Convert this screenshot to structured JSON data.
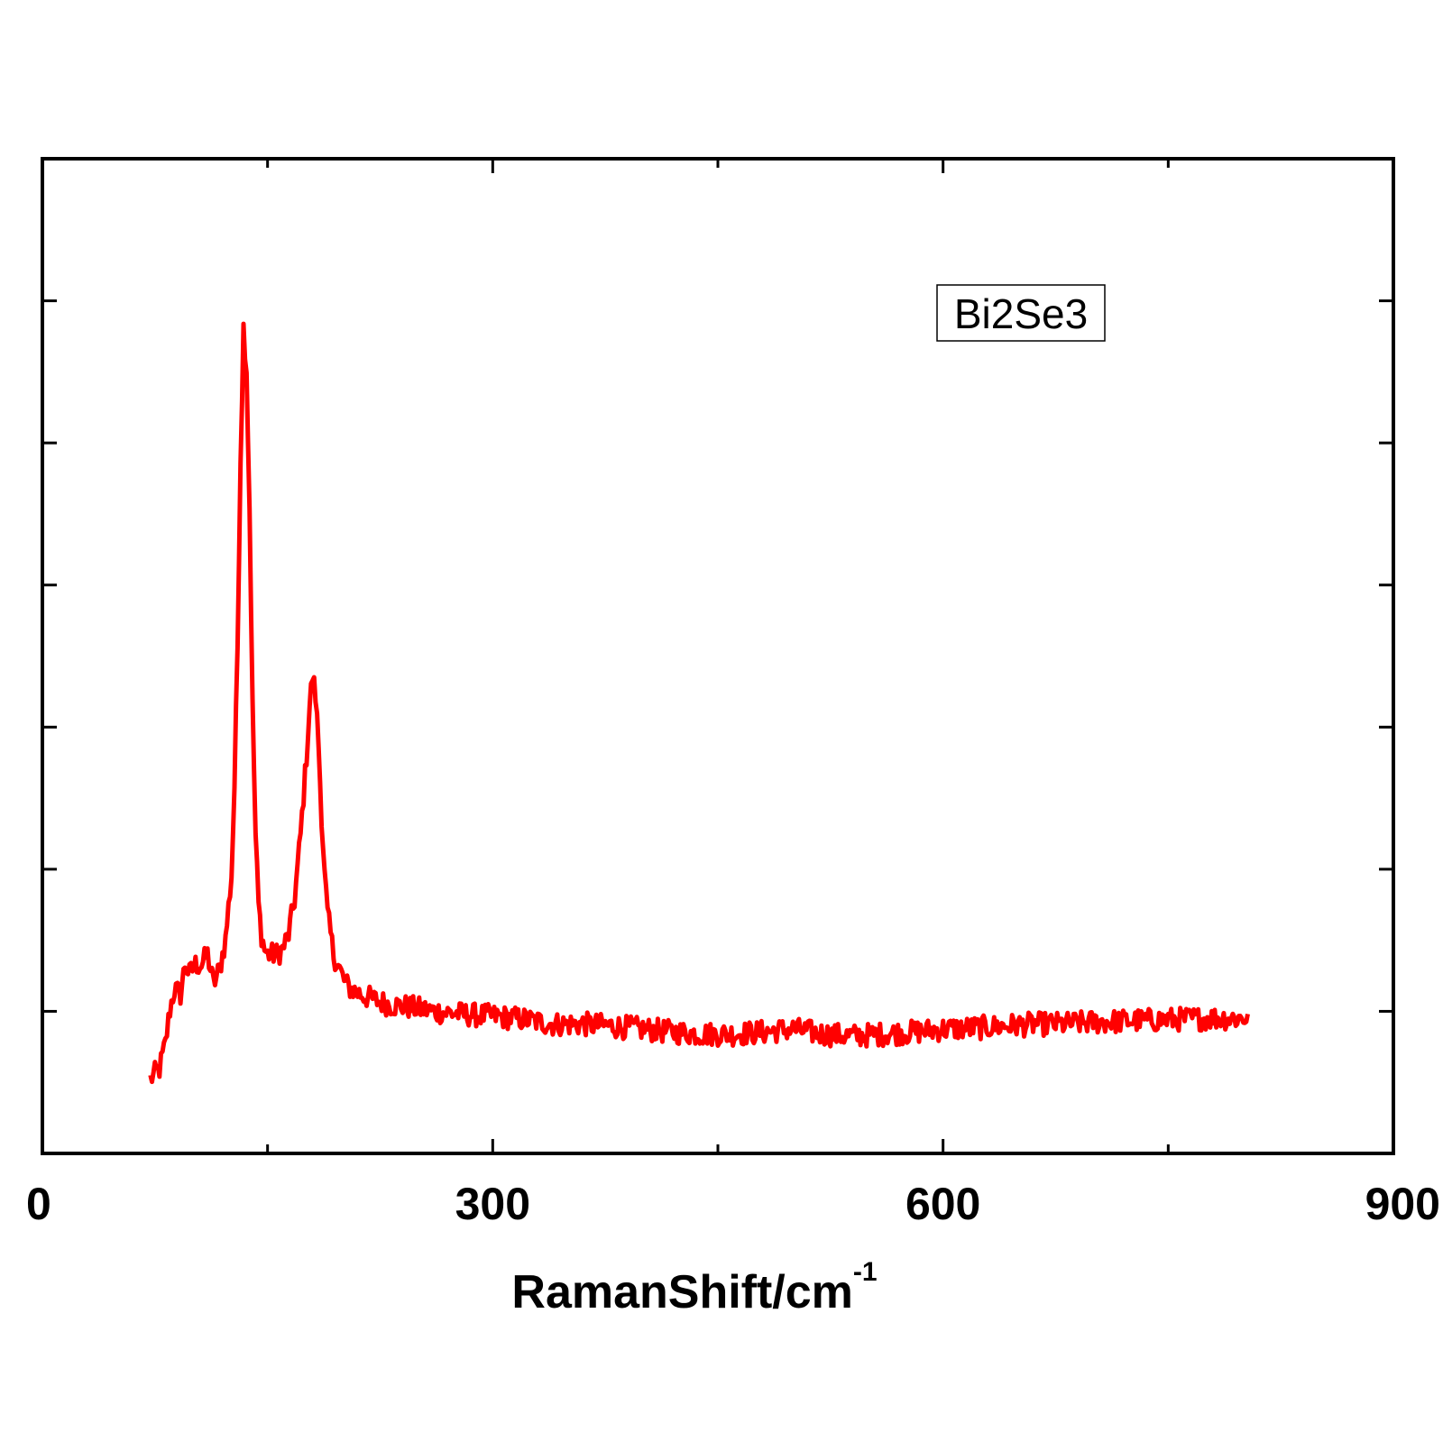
{
  "chart_data": {
    "type": "line",
    "title": "",
    "xlabel": "RamanShift/cm",
    "xlabel_superscript": "-1",
    "ylabel": "",
    "xlim": [
      0,
      900
    ],
    "x_major_ticks": [
      0,
      300,
      600,
      900
    ],
    "x_minor_ticks": [
      150,
      450,
      750
    ],
    "x_tick_labels": [
      "0",
      "300",
      "600",
      "900"
    ],
    "y_tick_count": 7,
    "y_tick_labels": [],
    "grid": false,
    "legend": {
      "position": "top-right",
      "entries": [
        "Bi2Se3"
      ]
    },
    "series": [
      {
        "name": "Bi2Se3",
        "color": "#ff0000",
        "x": [
          72,
          78,
          82,
          85,
          88,
          92,
          95,
          98,
          102,
          106,
          110,
          114,
          118,
          122,
          126,
          128,
          130,
          132,
          134,
          136,
          138,
          140,
          142,
          144,
          146,
          148,
          150,
          152,
          156,
          160,
          164,
          168,
          172,
          176,
          178,
          180,
          182,
          184,
          186,
          188,
          190,
          194,
          198,
          202,
          206,
          212,
          220,
          230,
          245,
          260,
          280,
          300,
          320,
          340,
          360,
          380,
          400,
          420,
          440,
          460,
          480,
          500,
          520,
          540,
          560,
          580,
          600,
          620,
          640,
          660,
          680,
          700,
          720,
          740,
          760,
          780,
          800,
          803
        ],
        "y": [
          0.075,
          0.085,
          0.11,
          0.145,
          0.165,
          0.16,
          0.19,
          0.18,
          0.19,
          0.19,
          0.2,
          0.17,
          0.185,
          0.215,
          0.28,
          0.37,
          0.51,
          0.7,
          0.83,
          0.79,
          0.65,
          0.45,
          0.32,
          0.25,
          0.22,
          0.205,
          0.2,
          0.2,
          0.2,
          0.205,
          0.22,
          0.255,
          0.32,
          0.4,
          0.45,
          0.48,
          0.46,
          0.41,
          0.34,
          0.28,
          0.24,
          0.2,
          0.185,
          0.17,
          0.165,
          0.16,
          0.155,
          0.15,
          0.147,
          0.143,
          0.14,
          0.138,
          0.135,
          0.13,
          0.13,
          0.128,
          0.125,
          0.122,
          0.12,
          0.12,
          0.122,
          0.125,
          0.12,
          0.118,
          0.12,
          0.122,
          0.125,
          0.126,
          0.128,
          0.13,
          0.13,
          0.132,
          0.133,
          0.134,
          0.135,
          0.136,
          0.136,
          0.138
        ],
        "noise_amplitude": 0.012
      }
    ]
  }
}
